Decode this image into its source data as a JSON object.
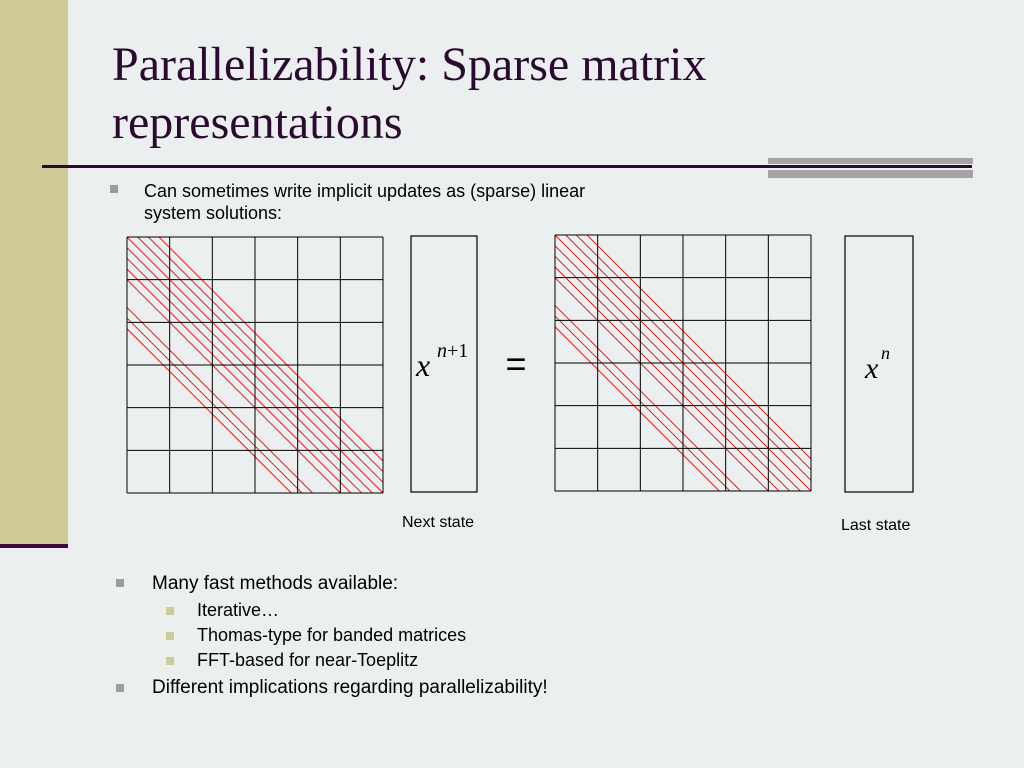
{
  "slide": {
    "title": "Parallelizability: Sparse matrix representations",
    "intro_bullet_line1": "Can sometimes write implicit updates as (sparse) linear",
    "intro_bullet_line2": "system solutions:",
    "equals_sign": "=",
    "next_state_label": "Next state",
    "last_state_label": "Last state",
    "vector_left": {
      "base": "x",
      "superscript": "n+1"
    },
    "vector_right": {
      "base": "x",
      "superscript": "n"
    },
    "bullets": [
      {
        "text": "Many fast methods available:",
        "sub": [
          "Iterative…",
          "Thomas-type for banded matrices",
          "FFT-based for near-Toeplitz"
        ]
      },
      {
        "text": "Different implications regarding parallelizability!"
      }
    ],
    "colors": {
      "title": "#2a0a2e",
      "accent_bar": "#cfcb98",
      "hatch": "#e0201c",
      "bullet": "#9c9c9c"
    }
  }
}
